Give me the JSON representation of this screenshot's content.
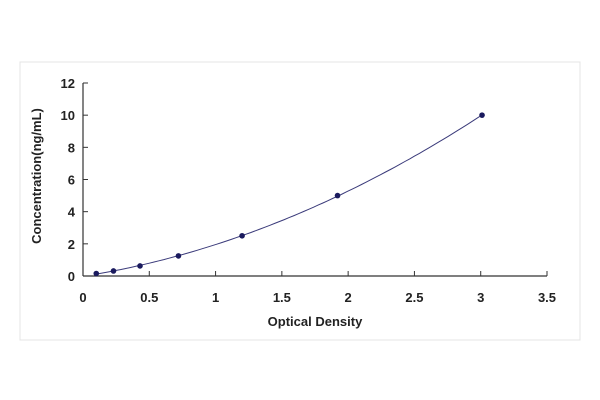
{
  "chart_data": {
    "type": "scatter",
    "title": "",
    "xlabel": "Optical Density",
    "ylabel": "Concentration(ng/mL)",
    "xlim": [
      0,
      3.5
    ],
    "ylim": [
      0,
      12
    ],
    "xticks": [
      "0",
      "0.5",
      "1",
      "1.5",
      "2",
      "2.5",
      "3",
      "3.5"
    ],
    "yticks": [
      "0",
      "2",
      "4",
      "6",
      "8",
      "10",
      "12"
    ],
    "grid": false,
    "fit_curve": true,
    "marker_color": "#1a1a5e",
    "curve_color": "#3a3a7a",
    "series": [
      {
        "x": [
          0.1,
          0.23,
          0.43,
          0.72,
          1.2,
          1.92,
          3.01
        ],
        "y": [
          0.156,
          0.312,
          0.625,
          1.25,
          2.5,
          5,
          10
        ]
      }
    ]
  }
}
